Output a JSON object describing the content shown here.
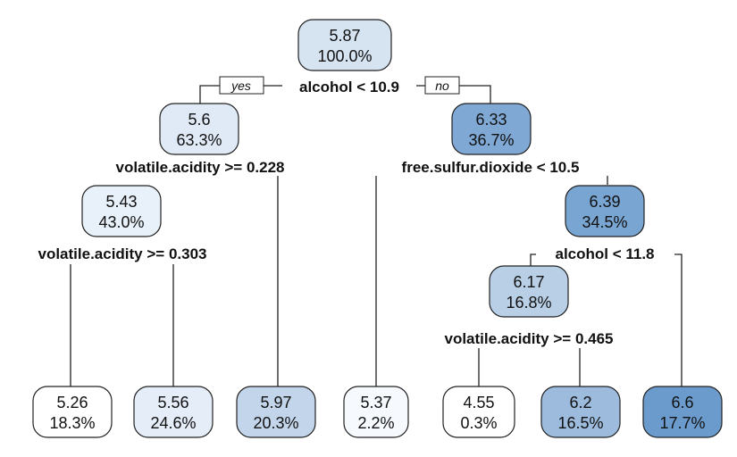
{
  "tree": {
    "nodes": [
      {
        "id": "root",
        "value": "5.87",
        "percent": "100.0%",
        "fill": "#d6e4f2"
      },
      {
        "id": "n2",
        "value": "5.6",
        "percent": "63.3%",
        "fill": "#dfeaf6"
      },
      {
        "id": "n3",
        "value": "6.33",
        "percent": "36.7%",
        "fill": "#7fa8d4"
      },
      {
        "id": "n4",
        "value": "5.43",
        "percent": "43.0%",
        "fill": "#e8f0f9"
      },
      {
        "id": "n7",
        "value": "6.39",
        "percent": "34.5%",
        "fill": "#79a5d2"
      },
      {
        "id": "n14",
        "value": "6.17",
        "percent": "16.8%",
        "fill": "#b9cfe6"
      },
      {
        "id": "leaf1",
        "value": "5.26",
        "percent": "18.3%",
        "fill": "#ffffff"
      },
      {
        "id": "leaf2",
        "value": "5.56",
        "percent": "24.6%",
        "fill": "#e4edf8"
      },
      {
        "id": "leaf3",
        "value": "5.97",
        "percent": "20.3%",
        "fill": "#c3d5ea"
      },
      {
        "id": "leaf4",
        "value": "5.37",
        "percent": "2.2%",
        "fill": "#f6f9fd"
      },
      {
        "id": "leaf5",
        "value": "4.55",
        "percent": "0.3%",
        "fill": "#ffffff"
      },
      {
        "id": "leaf6",
        "value": "6.2",
        "percent": "16.5%",
        "fill": "#9dbbdd"
      },
      {
        "id": "leaf7",
        "value": "6.6",
        "percent": "17.7%",
        "fill": "#6b9bcd"
      }
    ],
    "splits": [
      {
        "id": "s-root",
        "label": "alcohol < 10.9"
      },
      {
        "id": "s-n2",
        "label": "volatile.acidity >= 0.228"
      },
      {
        "id": "s-n3",
        "label": "free.sulfur.dioxide < 10.5"
      },
      {
        "id": "s-n4",
        "label": "volatile.acidity >= 0.303"
      },
      {
        "id": "s-n7",
        "label": "alcohol < 11.8"
      },
      {
        "id": "s-n14",
        "label": "volatile.acidity >= 0.465"
      }
    ],
    "branch_labels": {
      "yes": "yes",
      "no": "no"
    }
  }
}
